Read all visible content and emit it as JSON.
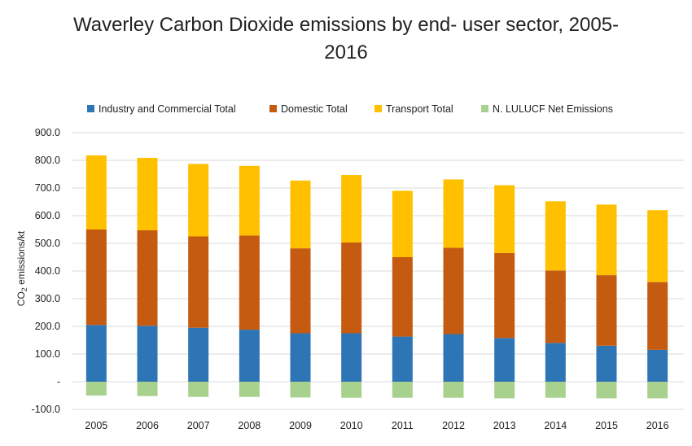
{
  "chart_data": {
    "type": "bar",
    "stacked": true,
    "title_line1": "Waverley Carbon Dioxide emissions by end- user sector, 2005-",
    "title_line2": "2016",
    "ylabel_main": "CO",
    "ylabel_sub": "2",
    "ylabel_rest": " emissions/kt",
    "xlabel": "",
    "ylim": [
      -100,
      900
    ],
    "ytick_labels": [
      "-100.0",
      "-",
      "100.0",
      "200.0",
      "300.0",
      "400.0",
      "500.0",
      "600.0",
      "700.0",
      "800.0",
      "900.0"
    ],
    "yticks": [
      -100,
      0,
      100,
      200,
      300,
      400,
      500,
      600,
      700,
      800,
      900
    ],
    "grid": true,
    "legend_position": "top",
    "categories": [
      "2005",
      "2006",
      "2007",
      "2008",
      "2009",
      "2010",
      "2011",
      "2012",
      "2013",
      "2014",
      "2015",
      "2016"
    ],
    "series": [
      {
        "name": "Industry and Commercial Total",
        "color": "#2E75B6",
        "values": [
          205,
          202,
          195,
          188,
          175,
          175,
          163,
          172,
          158,
          140,
          130,
          115
        ]
      },
      {
        "name": "Domestic Total",
        "color": "#C55A11",
        "values": [
          345,
          345,
          330,
          340,
          307,
          328,
          287,
          312,
          307,
          262,
          255,
          245
        ]
      },
      {
        "name": "Transport Total",
        "color": "#FFC000",
        "values": [
          268,
          262,
          262,
          252,
          245,
          244,
          240,
          247,
          245,
          250,
          255,
          260
        ]
      },
      {
        "name": "N. LULUCF Net Emissions",
        "color": "#A9D18E",
        "values": [
          -50,
          -52,
          -55,
          -55,
          -57,
          -58,
          -58,
          -58,
          -60,
          -58,
          -60,
          -60
        ]
      }
    ]
  }
}
